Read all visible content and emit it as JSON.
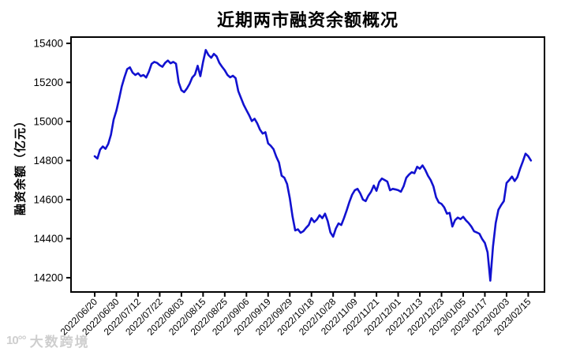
{
  "title": "近期两市融资余额概况",
  "watermark": {
    "logo": "10°°",
    "text": "大数跨境"
  },
  "chart_data": {
    "type": "line",
    "title": "近期两市融资余额概况",
    "xlabel": "",
    "ylabel": "融资余额（亿元）",
    "grid": false,
    "legend": null,
    "line_color": "#1212d0",
    "axis_color": "#000000",
    "background": "#ffffff",
    "ylim": [
      14127,
      15432
    ],
    "yticks": [
      14200,
      14400,
      14600,
      14800,
      15000,
      15200,
      15400
    ],
    "x_tick_every": 8,
    "x_tick_labels": [
      "2022/06/20",
      "2022/06/30",
      "2022/07/12",
      "2022/07/22",
      "2022/08/03",
      "2022/08/15",
      "2022/08/25",
      "2022/09/06",
      "2022/09/19",
      "2022/09/29",
      "2022/10/18",
      "2022/10/28",
      "2022/11/09",
      "2022/11/21",
      "2022/12/01",
      "2022/12/13",
      "2022/12/23",
      "2023/01/05",
      "2023/01/17",
      "2023/02/03",
      "2023/02/15"
    ],
    "x": [
      "2022/06/20",
      "2022/06/21",
      "2022/06/22",
      "2022/06/23",
      "2022/06/24",
      "2022/06/27",
      "2022/06/28",
      "2022/06/29",
      "2022/06/30",
      "2022/07/01",
      "2022/07/04",
      "2022/07/05",
      "2022/07/06",
      "2022/07/07",
      "2022/07/08",
      "2022/07/11",
      "2022/07/12",
      "2022/07/13",
      "2022/07/14",
      "2022/07/15",
      "2022/07/18",
      "2022/07/19",
      "2022/07/20",
      "2022/07/21",
      "2022/07/22",
      "2022/07/25",
      "2022/07/26",
      "2022/07/27",
      "2022/07/28",
      "2022/07/29",
      "2022/08/01",
      "2022/08/02",
      "2022/08/03",
      "2022/08/04",
      "2022/08/05",
      "2022/08/08",
      "2022/08/09",
      "2022/08/10",
      "2022/08/11",
      "2022/08/12",
      "2022/08/15",
      "2022/08/16",
      "2022/08/17",
      "2022/08/18",
      "2022/08/19",
      "2022/08/22",
      "2022/08/23",
      "2022/08/24",
      "2022/08/25",
      "2022/08/26",
      "2022/08/29",
      "2022/08/30",
      "2022/08/31",
      "2022/09/01",
      "2022/09/02",
      "2022/09/05",
      "2022/09/06",
      "2022/09/07",
      "2022/09/08",
      "2022/09/09",
      "2022/09/13",
      "2022/09/14",
      "2022/09/15",
      "2022/09/16",
      "2022/09/19",
      "2022/09/20",
      "2022/09/21",
      "2022/09/22",
      "2022/09/23",
      "2022/09/26",
      "2022/09/27",
      "2022/09/28",
      "2022/09/29",
      "2022/09/30",
      "2022/10/10",
      "2022/10/11",
      "2022/10/12",
      "2022/10/13",
      "2022/10/14",
      "2022/10/17",
      "2022/10/18",
      "2022/10/19",
      "2022/10/20",
      "2022/10/21",
      "2022/10/24",
      "2022/10/25",
      "2022/10/26",
      "2022/10/27",
      "2022/10/28",
      "2022/10/31",
      "2022/11/01",
      "2022/11/02",
      "2022/11/03",
      "2022/11/04",
      "2022/11/07",
      "2022/11/08",
      "2022/11/09",
      "2022/11/10",
      "2022/11/11",
      "2022/11/14",
      "2022/11/15",
      "2022/11/16",
      "2022/11/17",
      "2022/11/18",
      "2022/11/21",
      "2022/11/22",
      "2022/11/23",
      "2022/11/24",
      "2022/11/25",
      "2022/11/28",
      "2022/11/29",
      "2022/11/30",
      "2022/12/01",
      "2022/12/02",
      "2022/12/05",
      "2022/12/06",
      "2022/12/07",
      "2022/12/08",
      "2022/12/09",
      "2022/12/12",
      "2022/12/13",
      "2022/12/14",
      "2022/12/15",
      "2022/12/16",
      "2022/12/19",
      "2022/12/20",
      "2022/12/21",
      "2022/12/22",
      "2022/12/23",
      "2022/12/26",
      "2022/12/27",
      "2022/12/28",
      "2022/12/29",
      "2022/12/30",
      "2023/01/03",
      "2023/01/04",
      "2023/01/05",
      "2023/01/06",
      "2023/01/09",
      "2023/01/10",
      "2023/01/11",
      "2023/01/12",
      "2023/01/13",
      "2023/01/16",
      "2023/01/17",
      "2023/01/18",
      "2023/01/19",
      "2023/01/20",
      "2023/01/30",
      "2023/01/31",
      "2023/02/01",
      "2023/02/02",
      "2023/02/03",
      "2023/02/06",
      "2023/02/07",
      "2023/02/08",
      "2023/02/09",
      "2023/02/10",
      "2023/02/13",
      "2023/02/14",
      "2023/02/15",
      "2023/02/16"
    ],
    "y": [
      14822,
      14810,
      14856,
      14872,
      14860,
      14885,
      14932,
      15010,
      15055,
      15115,
      15180,
      15227,
      15268,
      15277,
      15250,
      15238,
      15247,
      15232,
      15238,
      15225,
      15255,
      15295,
      15305,
      15300,
      15288,
      15280,
      15300,
      15312,
      15298,
      15305,
      15296,
      15200,
      15160,
      15150,
      15168,
      15192,
      15225,
      15240,
      15285,
      15232,
      15305,
      15366,
      15340,
      15326,
      15346,
      15333,
      15300,
      15280,
      15262,
      15238,
      15226,
      15234,
      15222,
      15155,
      15120,
      15085,
      15058,
      15032,
      15002,
      15014,
      14990,
      14958,
      14938,
      14945,
      14888,
      14875,
      14858,
      14820,
      14790,
      14722,
      14712,
      14680,
      14608,
      14515,
      14442,
      14448,
      14430,
      14438,
      14455,
      14470,
      14505,
      14485,
      14498,
      14520,
      14505,
      14528,
      14490,
      14432,
      14410,
      14452,
      14478,
      14470,
      14505,
      14545,
      14588,
      14625,
      14648,
      14655,
      14632,
      14600,
      14592,
      14620,
      14640,
      14672,
      14645,
      14690,
      14708,
      14700,
      14692,
      14648,
      14655,
      14652,
      14648,
      14640,
      14668,
      14712,
      14728,
      14740,
      14735,
      14768,
      14758,
      14775,
      14752,
      14722,
      14700,
      14668,
      14612,
      14585,
      14578,
      14560,
      14528,
      14532,
      14462,
      14495,
      14508,
      14500,
      14512,
      14494,
      14480,
      14462,
      14438,
      14432,
      14425,
      14398,
      14378,
      14330,
      14185,
      14360,
      14480,
      14548,
      14572,
      14592,
      14685,
      14700,
      14718,
      14695,
      14715,
      14758,
      14795,
      14835,
      14822,
      14800
    ]
  }
}
